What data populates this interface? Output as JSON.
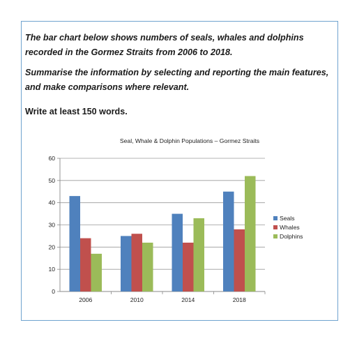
{
  "prompt": {
    "paragraph1": "The bar chart below shows numbers of seals, whales and dolphins recorded in the Gormez Straits from 2006 to 2018.",
    "paragraph2": "Summarise the information by selecting and reporting the main features, and make comparisons where relevant.",
    "paragraph3": "Write at least 150 words."
  },
  "colors": {
    "frame_border": "#6fa3cf",
    "Seals": "#4f81bd",
    "Whales": "#c0504d",
    "Dolphins": "#9bbb59"
  },
  "chart_data": {
    "type": "bar",
    "title": "Seal, Whale & Dolphin Populations – Gormez Straits",
    "xlabel": "",
    "ylabel": "",
    "categories": [
      "2006",
      "2010",
      "2014",
      "2018"
    ],
    "series": [
      {
        "name": "Seals",
        "values": [
          43,
          25,
          35,
          45
        ]
      },
      {
        "name": "Whales",
        "values": [
          24,
          26,
          22,
          28
        ]
      },
      {
        "name": "Dolphins",
        "values": [
          17,
          22,
          33,
          52
        ]
      }
    ],
    "ylim": [
      0,
      60
    ],
    "yticks": [
      0,
      10,
      20,
      30,
      40,
      50,
      60
    ],
    "grid": true,
    "legend": "right"
  }
}
